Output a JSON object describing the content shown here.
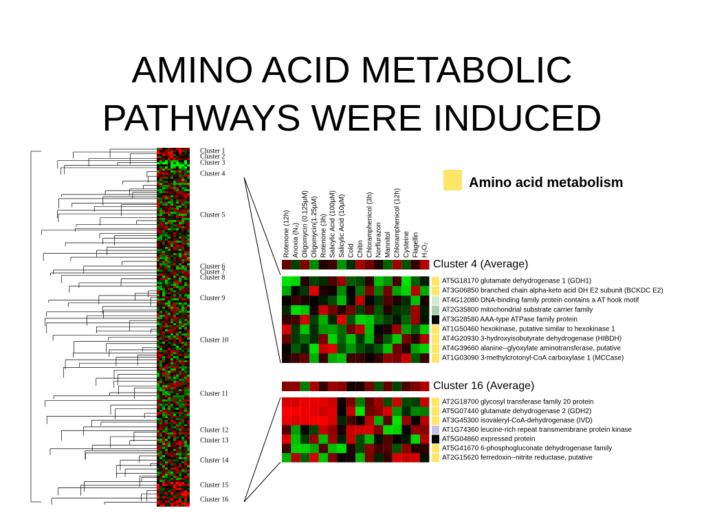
{
  "title": {
    "lines": [
      "AMINO ACID METABOLIC",
      "PATHWAYS WERE INDUCED"
    ]
  },
  "legend": {
    "label": "Amino acid metabolism",
    "color": "#ffe666"
  },
  "clusters": [
    "Cluster 1",
    "Cluster 2",
    "Cluster 3",
    "Cluster 4",
    "Cluster 5",
    "Cluster 6",
    "Cluster 7",
    "Cluster 8",
    "Cluster 9",
    "Cluster 10",
    "Cluster 11",
    "Cluster 12",
    "Cluster 13",
    "Cluster 14",
    "Cluster 15",
    "Cluster 16"
  ],
  "conditions": [
    "Rotenone (12h)",
    "Anoxia (N₂)",
    "Oligomycin (0.125µM)",
    "Oligomycin(1.25µM)",
    "Rotenone (3h)",
    "Salicylic Acid (100µM)",
    "Salicylic Acid (10µM)",
    "Cold",
    "Chitin",
    "Chloramphenicol (3h)",
    "Norflurazon",
    "Mannitol",
    "Chloramphenicol (12h)",
    "Cysteine",
    "Flagellin",
    "H₂O₂"
  ],
  "panels": [
    {
      "label": "Cluster 4 (Average)",
      "genes": [
        {
          "text": "AT5G18170 glutamate dehydrogenase 1 (GDH1)",
          "tag_color": "#ffe666"
        },
        {
          "text": "AT3G06850 branched chain alpha-keto acid DH E2 subunit (BCKDC E2)",
          "tag_color": "#ffe666"
        },
        {
          "text": "AT4G12080 DNA-binding family protein contains a AT hook motif",
          "tag_color": "#d4ead4"
        },
        {
          "text": "AT2G35800 mitochondrial substrate carrier family",
          "tag_color": "#a9d1a9"
        },
        {
          "text": "AT3G28580 AAA-type ATPase family protein",
          "tag_color": "#000000"
        },
        {
          "text": "AT1G50460 hexokinase, putative similar to hexokinase 1",
          "tag_color": "#ffe666"
        },
        {
          "text": "AT4G20930 3-hydroxyisobutyrate dehydrogenase (HIBDH)",
          "tag_color": "#ffe666"
        },
        {
          "text": "AT4G39660 alanine--glyoxylate aminotransferase, putative",
          "tag_color": "#ffe666"
        },
        {
          "text": "AT1G03090 3-methylcrotonyl-CoA carboxylase 1 (MCCase)",
          "tag_color": "#ffe666"
        }
      ]
    },
    {
      "label": "Cluster 16 (Average)",
      "genes": [
        {
          "text": "AT2G18700 glycosyl transferase family 20 protein",
          "tag_color": "#ffe666"
        },
        {
          "text": "AT5G07440 glutamate dehydrogenase 2 (GDH2)",
          "tag_color": "#ffe666"
        },
        {
          "text": "AT3G45300 isovaleryl-CoA-dehydrogenase (IVD)",
          "tag_color": "#ffe666"
        },
        {
          "text": "AT1G74360 leucine-rich repeat transmembrane protein kinase",
          "tag_color": "#c8c2e2"
        },
        {
          "text": "AT5G04860 expressed protein",
          "tag_color": "#000000"
        },
        {
          "text": "AT5G41670 6-phosphogluconate dehydrogenase family",
          "tag_color": "#ffe666"
        },
        {
          "text": "AT2G15620 ferredoxin--nitrite reductase, putative",
          "tag_color": "#ffe666"
        }
      ]
    }
  ]
}
